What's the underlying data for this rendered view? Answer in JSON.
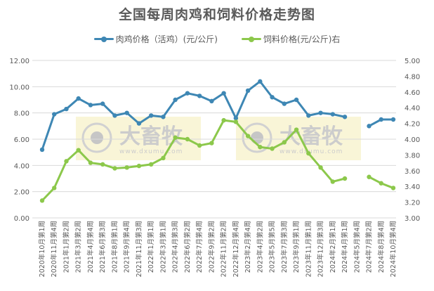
{
  "title": "全国每周肉鸡和饲料价格走势图",
  "legend": [
    {
      "label": "肉鸡价格（活鸡）(元/公斤)",
      "color": "#3e87b4"
    },
    {
      "label": "饲料价格(元/公斤)右",
      "color": "#8cc84b"
    }
  ],
  "watermark": {
    "text": "大畜牧",
    "url": "www.dxumu.com"
  },
  "chart_data": {
    "type": "line",
    "title": "全国每周肉鸡和饲料价格走势图",
    "xlabel": "",
    "ylabel": "",
    "grid": true,
    "legend_position": "top",
    "categories": [
      "2020年10月第1周",
      "2020年11月第4周",
      "2021年1月第2周",
      "2021年3月第2周",
      "2021年4月第4周",
      "2021年6月第3周",
      "2021年8月第1周",
      "2021年9月第4周",
      "2021年11月第3周",
      "2022年1月第1周",
      "2022年3月第1周",
      "2022年4月第3周",
      "2022年6月第2周",
      "2022年7月第4周",
      "2022年9月第2周",
      "2022年11月第2周",
      "2022年12月第4周",
      "2023年2月第4周",
      "2023年4月第2周",
      "2023年5月第5周",
      "2023年7月第3周",
      "2023年9月第1周",
      "2023年11月第1周",
      "2023年12月第3周",
      "2024年2月第1周",
      "2024年4月第1周",
      "2024年5月第4周",
      "2024年7月第2周",
      "2024年8月第4周",
      "2024年10月第4周"
    ],
    "left_axis": {
      "min": 0,
      "max": 12,
      "step": 2,
      "ticks": [
        "0.00",
        "2.00",
        "4.00",
        "6.00",
        "8.00",
        "10.00",
        "12.00"
      ]
    },
    "right_axis": {
      "min": 3.0,
      "max": 5.0,
      "step": 0.2,
      "ticks": [
        "3.00",
        "3.20",
        "3.40",
        "3.60",
        "3.80",
        "4.00",
        "4.20",
        "4.40",
        "4.60",
        "4.80",
        "5.00"
      ]
    },
    "series": [
      {
        "name": "肉鸡价格（活鸡）(元/公斤)",
        "axis": "left",
        "color": "#3e87b4",
        "values": [
          5.2,
          7.9,
          8.3,
          9.1,
          8.6,
          8.7,
          7.8,
          8.0,
          7.2,
          7.8,
          7.7,
          9.0,
          9.5,
          9.3,
          8.9,
          9.5,
          7.6,
          9.7,
          10.4,
          9.2,
          8.7,
          9.0,
          7.8,
          8.0,
          7.9,
          7.7,
          null,
          7.0,
          7.5,
          7.5
        ]
      },
      {
        "name": "饲料价格(元/公斤)右",
        "axis": "right",
        "color": "#8cc84b",
        "values": [
          3.22,
          3.38,
          3.72,
          3.86,
          3.7,
          3.68,
          3.63,
          3.64,
          3.66,
          3.68,
          3.76,
          4.02,
          4.0,
          3.92,
          3.95,
          4.24,
          4.22,
          4.04,
          3.9,
          3.88,
          3.96,
          4.12,
          3.82,
          3.64,
          3.46,
          3.5,
          null,
          3.52,
          3.44,
          3.38
        ]
      }
    ]
  }
}
